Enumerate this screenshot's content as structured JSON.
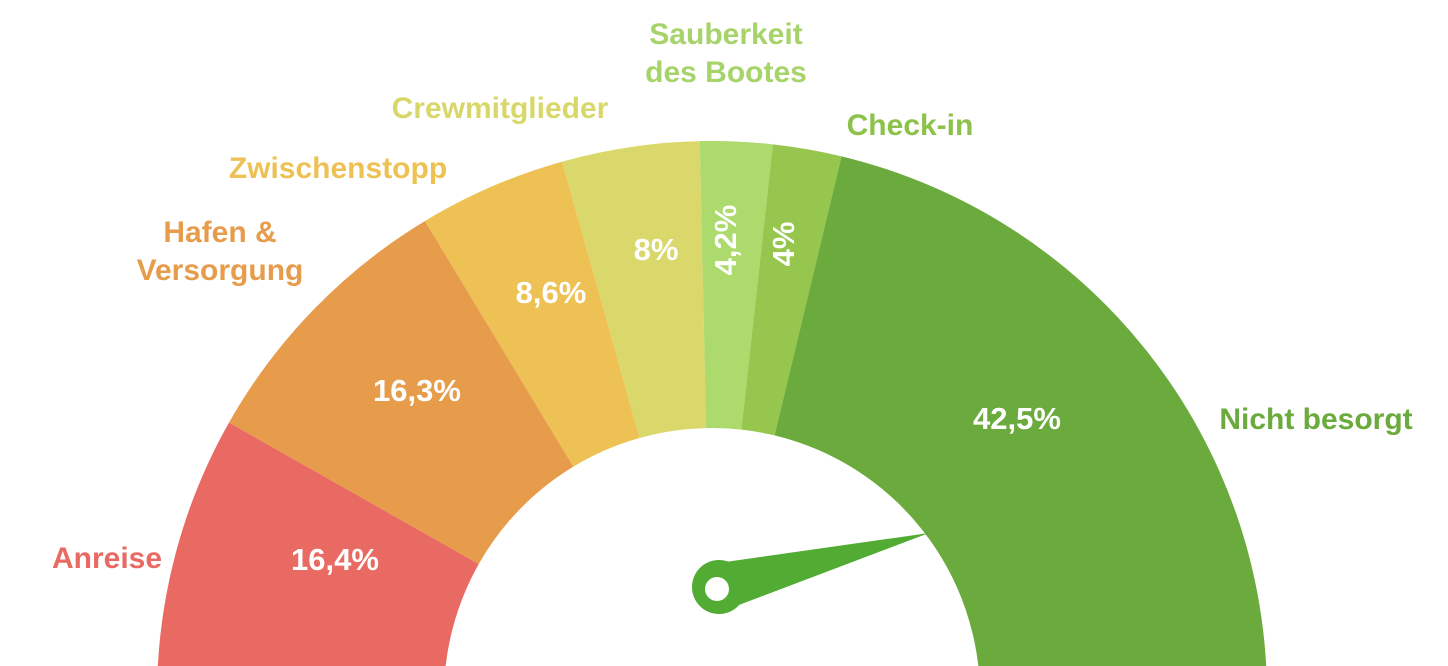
{
  "chart_data": {
    "type": "gauge",
    "unit": "%",
    "segments": [
      {
        "name": "Anreise",
        "label_lines": [
          "Anreise"
        ],
        "value": 16.4,
        "value_label": "16,4%",
        "color": "#E96A63"
      },
      {
        "name": "Hafen & Versorgung",
        "label_lines": [
          "Hafen &",
          "Versorgung"
        ],
        "value": 16.3,
        "value_label": "16,3%",
        "color": "#E69C4B"
      },
      {
        "name": "Zwischenstopp",
        "label_lines": [
          "Zwischenstopp"
        ],
        "value": 8.6,
        "value_label": "8,6%",
        "color": "#EEC155"
      },
      {
        "name": "Crewmitglieder",
        "label_lines": [
          "Crewmitglieder"
        ],
        "value": 8.0,
        "value_label": "8%",
        "color": "#DAD86A"
      },
      {
        "name": "Sauberkeit des Bootes",
        "label_lines": [
          "Sauberkeit",
          "des Bootes"
        ],
        "value": 4.2,
        "value_label": "4,2%",
        "color": "#ACDA6C",
        "value_rotated": true
      },
      {
        "name": "Check-in",
        "label_lines": [
          "Check-in"
        ],
        "value": 4.0,
        "value_label": "4%",
        "color": "#96C64D",
        "value_rotated": true
      },
      {
        "name": "Nicht besorgt",
        "label_lines": [
          "Nicht besorgt"
        ],
        "value": 42.5,
        "value_label": "42,5%",
        "color": "#6BAA3C"
      }
    ],
    "label_colors": {
      "Anreise": "#E96A63",
      "Hafen & Versorgung": "#E69C4B",
      "Zwischenstopp": "#EEC155",
      "Crewmitglieder": "#D8D86A",
      "Sauberkeit des Bootes": "#A6D46A",
      "Check-in": "#8CC24A",
      "Nicht besorgt": "#6BAA3C"
    },
    "needle": {
      "color": "#52AC34",
      "points_to": "Nicht besorgt"
    }
  }
}
